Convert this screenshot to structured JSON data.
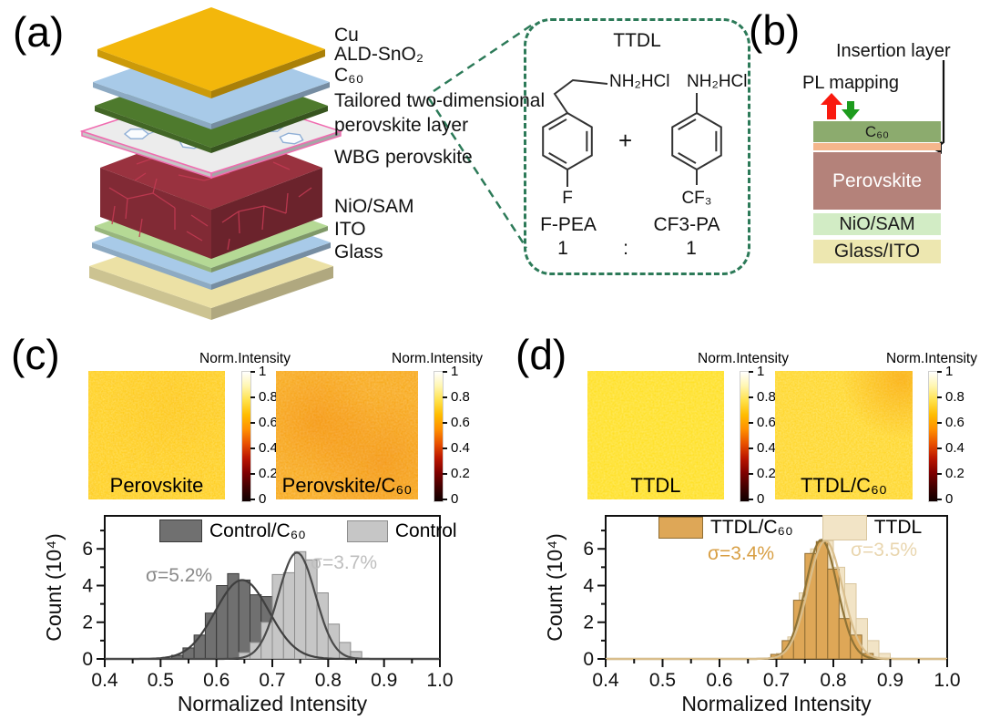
{
  "panels": {
    "a": {
      "label": "(a)",
      "layer_labels": [
        "Cu",
        "ALD-SnO₂",
        "C₆₀",
        "Tailored two-dimensional",
        "perovskite layer",
        "WBG perovskite",
        "NiO/SAM",
        "ITO",
        "Glass"
      ],
      "colors": {
        "cu": "#F3B70B",
        "sno2": "#A8CAE8",
        "c60": "#4E7A2D",
        "tdl": "#ECECEC",
        "tdl_border": "#F06CB0",
        "wbg": "#99323F",
        "wbg_grain": "#C23A52",
        "nio": "#B5D995",
        "ito": "#A8CAE8",
        "glass": "#E9DC96",
        "callout": "#2C7A58",
        "hexagon": "#8FAFD6"
      },
      "molecule_box": {
        "title": "TTDL",
        "amine_left": "NH₂HCl",
        "amine_right": "NH₂HCl",
        "plus": "+",
        "sub_left": "F",
        "sub_right": "CF₃",
        "name_left": "F-PEA",
        "name_right": "CF3-PA",
        "ratio_left": "1",
        "colon": ":",
        "ratio_right": "1"
      }
    },
    "b": {
      "label": "(b)",
      "insertion_label": "Insertion layer",
      "pl_label": "PL mapping",
      "arrow_up_color": "#F91A0F",
      "arrow_down_color": "#1D9B1D",
      "layers": [
        {
          "name": "C₆₀",
          "color": "#8CAB6E",
          "text_color": "#1B1B1B"
        },
        {
          "name": "",
          "color": "#F4B68C",
          "text_color": "#1B1B1B"
        },
        {
          "name": "Perovskite",
          "color": "#B4827A",
          "text_color": "#FFFFFF"
        },
        {
          "name": "NiO/SAM",
          "color": "#D2ECC5",
          "text_color": "#1B1B1B"
        },
        {
          "name": "Glass/ITO",
          "color": "#EDE7B0",
          "text_color": "#1B1B1B"
        }
      ]
    },
    "c": {
      "label": "(c)",
      "colorbar": {
        "title": "Norm.Intensity",
        "ticks": [
          "1",
          "0.8",
          "0.6",
          "0.4",
          "0.2",
          "0"
        ]
      },
      "maps": [
        {
          "name": "Perovskite",
          "base": "#FFCF1E"
        },
        {
          "name": "Perovskite/C₆₀",
          "base": "#F8A81F"
        }
      ]
    },
    "d": {
      "label": "(d)",
      "colorbar": {
        "title": "Norm.Intensity",
        "ticks": [
          "1",
          "0.8",
          "0.6",
          "0.4",
          "0.2",
          "0"
        ]
      },
      "maps": [
        {
          "name": "TTDL",
          "base": "#FFDF20"
        },
        {
          "name": "TTDL/C₆₀",
          "base": "#FFD628"
        }
      ]
    }
  },
  "colormap_stops": [
    "#FFFFFF",
    "#FFF6B0",
    "#FFE14A",
    "#FFBC00",
    "#FF8F00",
    "#E85000",
    "#BB1600",
    "#800000",
    "#420000",
    "#0E0000"
  ],
  "chart_data": [
    {
      "type": "bar",
      "panel": "c",
      "title": "",
      "xlabel": "Normalized Intensity",
      "ylabel": "Count (10⁴)",
      "xlim": [
        0.4,
        1.0
      ],
      "ylim": [
        0,
        7.8
      ],
      "xticks": [
        0.4,
        0.5,
        0.6,
        0.7,
        0.8,
        0.9,
        1.0
      ],
      "yticks": [
        0,
        2,
        4,
        6
      ],
      "x_minor_step": 0.05,
      "y_minor": [
        1,
        3,
        5,
        7
      ],
      "bin_width": 0.02,
      "grid": false,
      "legend_position": "top-inside",
      "draw_order": [
        0,
        1
      ],
      "series": [
        {
          "name": "Control/C₆₀",
          "fill": "#707070",
          "edge": "#3A3A3A",
          "curve_color": "#3F3F3F",
          "sigma": "σ=5.2%",
          "sigma_color": "#8A8A8A",
          "gauss": {
            "mean": 0.646,
            "sd": 0.048,
            "amp": 4.3
          },
          "centers": [
            0.53,
            0.55,
            0.57,
            0.59,
            0.61,
            0.63,
            0.65,
            0.67,
            0.69,
            0.71,
            0.73,
            0.75,
            0.77,
            0.79
          ],
          "values": [
            0.2,
            0.6,
            1.3,
            2.5,
            4.0,
            4.65,
            4.3,
            3.5,
            3.4,
            2.6,
            1.6,
            0.85,
            0.7,
            0.3
          ]
        },
        {
          "name": "Control",
          "fill": "#C6C6C6",
          "edge": "#8C8C8C",
          "curve_color": "#4A4A4A",
          "sigma": "σ=3.7%",
          "sigma_color": "#BEBEBE",
          "gauss": {
            "mean": 0.744,
            "sd": 0.033,
            "amp": 5.8
          },
          "centers": [
            0.65,
            0.67,
            0.69,
            0.71,
            0.73,
            0.75,
            0.77,
            0.79,
            0.81,
            0.83,
            0.85
          ],
          "values": [
            0.35,
            0.9,
            2.0,
            4.6,
            4.7,
            5.85,
            5.4,
            3.6,
            1.9,
            0.9,
            0.4
          ]
        }
      ]
    },
    {
      "type": "bar",
      "panel": "d",
      "title": "",
      "xlabel": "Normalized Intensity",
      "ylabel": "Count (10⁴)",
      "xlim": [
        0.4,
        1.0
      ],
      "ylim": [
        0,
        7.8
      ],
      "xticks": [
        0.4,
        0.5,
        0.6,
        0.7,
        0.8,
        0.9,
        1.0
      ],
      "yticks": [
        0,
        2,
        4,
        6
      ],
      "x_minor_step": 0.05,
      "y_minor": [
        1,
        3,
        5,
        7
      ],
      "bin_width": 0.02,
      "grid": false,
      "legend_position": "top-inside",
      "draw_order": [
        1,
        0
      ],
      "series": [
        {
          "name": "TTDL/C₆₀",
          "fill": "#DEA757",
          "edge": "#8F6D33",
          "curve_color": "#8F7336",
          "sigma": "σ=3.4%",
          "sigma_color": "#D89F44",
          "gauss": {
            "mean": 0.779,
            "sd": 0.028,
            "amp": 6.5
          },
          "centers": [
            0.7,
            0.72,
            0.74,
            0.76,
            0.78,
            0.8,
            0.82,
            0.84,
            0.86
          ],
          "values": [
            0.25,
            1.0,
            3.2,
            5.75,
            6.4,
            4.9,
            2.2,
            1.3,
            0.3
          ]
        },
        {
          "name": "TTDL",
          "fill": "#F2E4C6",
          "edge": "#D9C69E",
          "curve_color": "#D9BE8C",
          "sigma": "σ=3.5%",
          "sigma_color": "#E9D6AF",
          "gauss": {
            "mean": 0.786,
            "sd": 0.03,
            "amp": 6.45
          },
          "centers": [
            0.71,
            0.73,
            0.75,
            0.77,
            0.79,
            0.81,
            0.83,
            0.85,
            0.87,
            0.89
          ],
          "values": [
            0.3,
            1.2,
            3.6,
            6.0,
            6.45,
            5.0,
            4.1,
            2.2,
            1.0,
            0.3
          ]
        }
      ]
    }
  ]
}
